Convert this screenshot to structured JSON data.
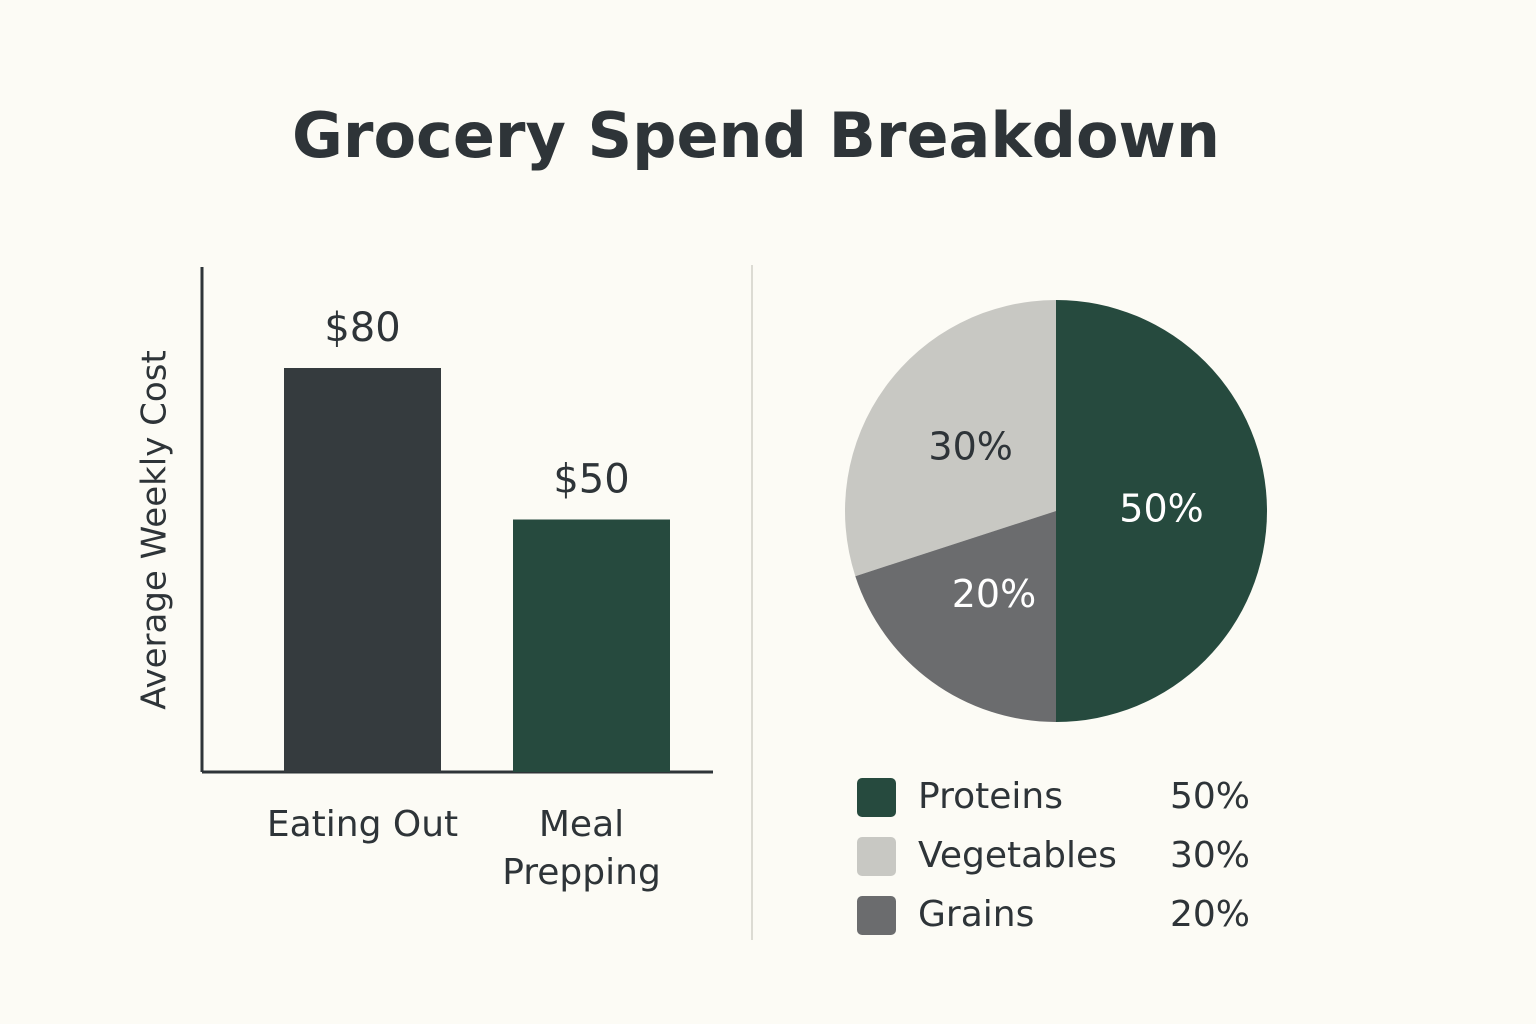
{
  "title": "Grocery Spend Breakdown",
  "chart_data": [
    {
      "type": "bar",
      "ylabel": "Average Weekly Cost",
      "categories": [
        "Eating Out",
        "Meal Prepping"
      ],
      "values": [
        80,
        50
      ],
      "value_labels": [
        "$80",
        "$50"
      ],
      "colors": [
        "#353b3e",
        "#264a3e"
      ],
      "ylim": [
        0,
        100
      ]
    },
    {
      "type": "pie",
      "categories": [
        "Proteins",
        "Vegetables",
        "Grains"
      ],
      "values": [
        50,
        30,
        20
      ],
      "value_labels": [
        "50%",
        "30%",
        "20%"
      ],
      "colors": [
        "#264a3e",
        "#c8c8c3",
        "#6b6c6e"
      ],
      "legend": "bottom"
    }
  ]
}
